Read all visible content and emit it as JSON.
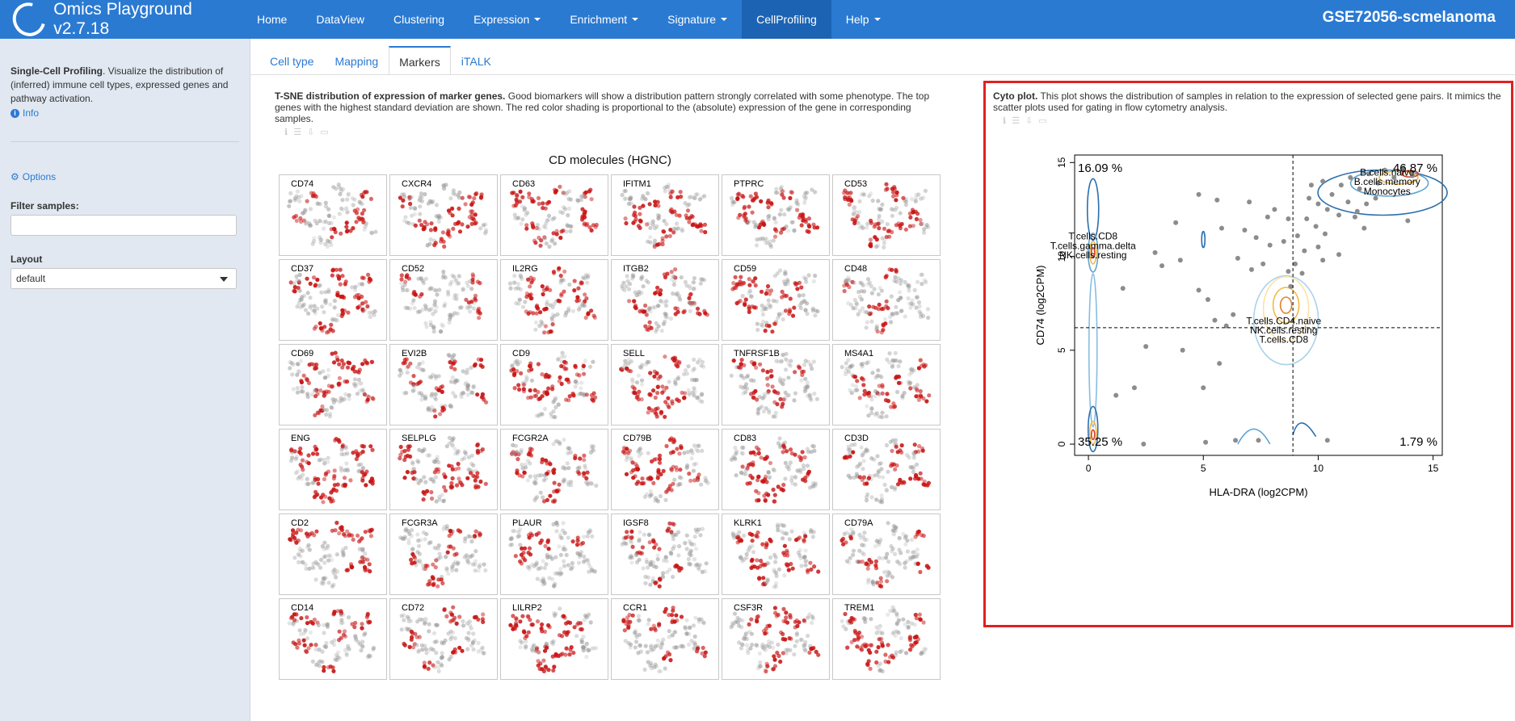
{
  "app": {
    "title": "Omics Playground v2.7.18",
    "dataset": "GSE72056-scmelanoma"
  },
  "nav": [
    {
      "label": "Home",
      "dropdown": false,
      "active": false
    },
    {
      "label": "DataView",
      "dropdown": false,
      "active": false
    },
    {
      "label": "Clustering",
      "dropdown": false,
      "active": false
    },
    {
      "label": "Expression",
      "dropdown": true,
      "active": false
    },
    {
      "label": "Enrichment",
      "dropdown": true,
      "active": false
    },
    {
      "label": "Signature",
      "dropdown": true,
      "active": false
    },
    {
      "label": "CellProfiling",
      "dropdown": false,
      "active": true
    },
    {
      "label": "Help",
      "dropdown": true,
      "active": false
    }
  ],
  "sidebar": {
    "title": "Single-Cell Profiling",
    "description": ". Visualize the distribution of (inferred) immune cell types, expressed genes and pathway activation.",
    "info_label": "Info",
    "options_label": "Options",
    "filter_label": "Filter samples:",
    "filter_value": "",
    "layout_label": "Layout",
    "layout_value": "default"
  },
  "tabs": [
    {
      "label": "Cell type",
      "active": false
    },
    {
      "label": "Mapping",
      "active": false
    },
    {
      "label": "Markers",
      "active": true
    },
    {
      "label": "iTALK",
      "active": false
    }
  ],
  "markers_panel": {
    "title": "T-SNE distribution of expression of marker genes.",
    "description": " Good biomarkers will show a distribution pattern strongly correlated with some phenotype. The top genes with the highest standard deviation are shown. The red color shading is proportional to the (absolute) expression of the gene in corresponding samples.",
    "grid_title": "CD molecules (HGNC)",
    "genes": [
      "CD74",
      "CXCR4",
      "CD63",
      "IFITM1",
      "PTPRC",
      "CD53",
      "CD37",
      "CD52",
      "IL2RG",
      "ITGB2",
      "CD59",
      "CD48",
      "CD69",
      "EVI2B",
      "CD9",
      "SELL",
      "TNFRSF1B",
      "MS4A1",
      "ENG",
      "SELPLG",
      "FCGR2A",
      "CD79B",
      "CD83",
      "CD3D",
      "CD2",
      "FCGR3A",
      "PLAUR",
      "IGSF8",
      "KLRK1",
      "CD79A",
      "CD14",
      "CD72",
      "LILRP2",
      "CCR1",
      "CSF3R",
      "TREM1"
    ]
  },
  "cyto_panel": {
    "title": "Cyto plot.",
    "description": " This plot shows the distribution of samples in relation to the expression of selected gene pairs. It mimics the scatter plots used for gating in flow cytometry analysis."
  },
  "chart_data": {
    "type": "scatter",
    "xlabel": "HLA-DRA (log2CPM)",
    "ylabel": "CD74 (log2CPM)",
    "xlim": [
      -0.6,
      15.4
    ],
    "ylim": [
      -0.6,
      15.4
    ],
    "x_ticks": [
      0,
      5,
      10,
      15
    ],
    "y_ticks": [
      0,
      5,
      10,
      15
    ],
    "gate_x": 8.9,
    "gate_y": 6.2,
    "quadrants": {
      "top_left": "16.09 %",
      "top_right": "46.87 %",
      "bottom_left": "35.25 %",
      "bottom_right": "1.79 %"
    },
    "annotations": [
      {
        "x": 0.2,
        "y": 10.9,
        "text": "T.cells.CD8"
      },
      {
        "x": 0.2,
        "y": 10.4,
        "text": "T.cells.gamma.delta"
      },
      {
        "x": 0.2,
        "y": 9.9,
        "text": "NK.cells.resting"
      },
      {
        "x": 13.0,
        "y": 14.3,
        "text": "B.cells.naive"
      },
      {
        "x": 13.0,
        "y": 13.8,
        "text": "B.cells.memory"
      },
      {
        "x": 13.0,
        "y": 13.3,
        "text": "Monocytes"
      },
      {
        "x": 8.5,
        "y": 6.4,
        "text": "T.cells.CD4.naive"
      },
      {
        "x": 8.5,
        "y": 5.9,
        "text": "NK.cells.resting"
      },
      {
        "x": 8.5,
        "y": 5.4,
        "text": "T.cells.CD8"
      }
    ],
    "points": [
      [
        4.8,
        13.3
      ],
      [
        5.6,
        13.0
      ],
      [
        7.0,
        12.9
      ],
      [
        8.1,
        12.5
      ],
      [
        7.8,
        12.1
      ],
      [
        3.8,
        11.8
      ],
      [
        5.8,
        11.5
      ],
      [
        6.8,
        11.4
      ],
      [
        7.3,
        11.0
      ],
      [
        7.9,
        10.6
      ],
      [
        2.9,
        10.2
      ],
      [
        4.0,
        9.8
      ],
      [
        3.2,
        9.5
      ],
      [
        6.5,
        9.9
      ],
      [
        7.1,
        9.3
      ],
      [
        7.6,
        9.6
      ],
      [
        8.7,
        9.2
      ],
      [
        1.5,
        8.3
      ],
      [
        4.8,
        8.2
      ],
      [
        5.2,
        7.7
      ],
      [
        5.5,
        6.6
      ],
      [
        6.3,
        6.9
      ],
      [
        6.0,
        6.3
      ],
      [
        2.5,
        5.2
      ],
      [
        4.1,
        5.0
      ],
      [
        5.7,
        4.3
      ],
      [
        2.0,
        3.0
      ],
      [
        1.2,
        2.6
      ],
      [
        5.0,
        3.0
      ],
      [
        6.4,
        0.2
      ],
      [
        7.4,
        0.2
      ],
      [
        5.1,
        0.1
      ],
      [
        2.4,
        0.0
      ],
      [
        10.4,
        0.2
      ],
      [
        9.7,
        13.8
      ],
      [
        10.2,
        14.0
      ],
      [
        10.6,
        13.3
      ],
      [
        11.0,
        13.8
      ],
      [
        11.4,
        14.2
      ],
      [
        11.8,
        13.6
      ],
      [
        12.2,
        14.4
      ],
      [
        12.6,
        13.9
      ],
      [
        12.9,
        14.6
      ],
      [
        13.3,
        14.2
      ],
      [
        13.7,
        14.7
      ],
      [
        14.1,
        14.3
      ],
      [
        10.0,
        12.8
      ],
      [
        10.4,
        12.5
      ],
      [
        10.9,
        12.2
      ],
      [
        11.3,
        12.9
      ],
      [
        11.7,
        12.4
      ],
      [
        12.1,
        12.8
      ],
      [
        12.5,
        13.1
      ],
      [
        9.5,
        12.0
      ],
      [
        9.9,
        11.6
      ],
      [
        10.3,
        11.2
      ],
      [
        9.1,
        11.1
      ],
      [
        9.4,
        10.3
      ],
      [
        10.0,
        10.5
      ],
      [
        9.0,
        9.6
      ],
      [
        8.5,
        10.8
      ],
      [
        8.8,
        8.4
      ],
      [
        9.3,
        9.1
      ],
      [
        10.2,
        9.8
      ],
      [
        10.9,
        10.1
      ],
      [
        11.6,
        12.1
      ],
      [
        13.9,
        11.9
      ],
      [
        12.0,
        11.5
      ],
      [
        9.6,
        13.1
      ],
      [
        8.7,
        12.0
      ]
    ]
  }
}
